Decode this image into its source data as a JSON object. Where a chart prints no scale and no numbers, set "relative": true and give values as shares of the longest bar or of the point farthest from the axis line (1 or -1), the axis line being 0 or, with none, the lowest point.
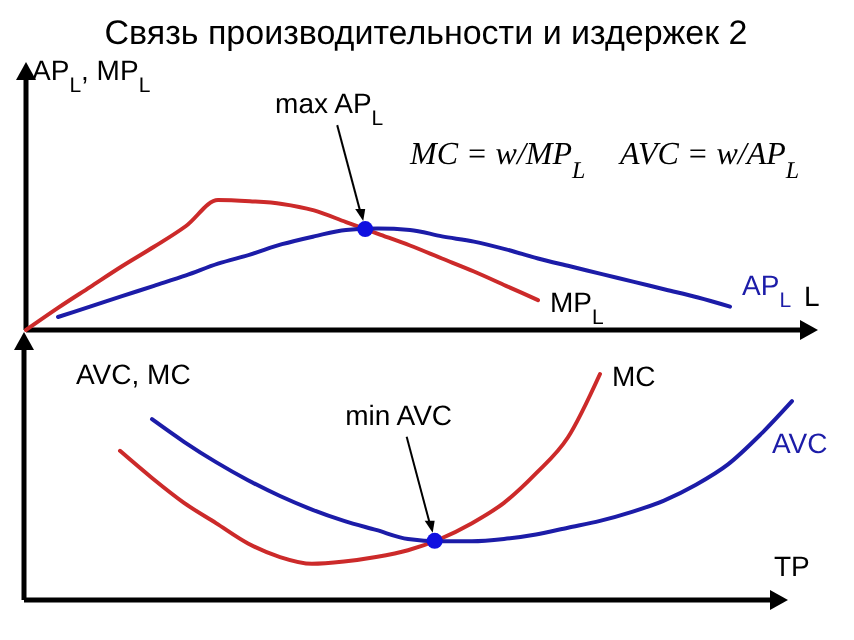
{
  "chart_data": [
    {
      "type": "line",
      "title": "Связь производительности и издержек 2",
      "xlabel": "L",
      "ylabel": "AP$_{L}$, MP$_{L}$",
      "relative": true,
      "categories": [
        null,
        null,
        null,
        null,
        null,
        null,
        null,
        null,
        null,
        null,
        null,
        null,
        null,
        null,
        null,
        null,
        null,
        null,
        null,
        null,
        null,
        null,
        null,
        null,
        null
      ],
      "series": [
        {
          "name": "MP$_{L}$",
          "color": "#cc2a2a",
          "values": [
            0,
            0.17,
            0.33,
            0.49,
            0.64,
            0.8,
            1.0,
            0.99,
            0.97,
            0.92,
            0.83,
            0.74,
            0.65,
            0.55,
            0.45,
            0.34,
            0.23,
            null,
            null,
            null,
            null,
            null,
            null,
            null,
            null
          ]
        },
        {
          "name": "AP$_{L}$",
          "color": "#1c1ca8",
          "values": [
            null,
            0.1,
            0.18,
            0.26,
            0.34,
            0.42,
            0.51,
            0.58,
            0.66,
            0.72,
            0.77,
            0.78,
            0.77,
            0.72,
            0.68,
            0.62,
            0.55,
            0.49,
            0.43,
            0.37,
            0.31,
            0.25,
            0.18,
            null,
            null
          ]
        }
      ],
      "annotations": [
        "max AP$_{L}$",
        "MC = w/MP$_{L}$",
        "AVC = w/AP$_{L}$"
      ]
    },
    {
      "type": "line",
      "xlabel": "TP",
      "ylabel": "AVC, MC",
      "relative": true,
      "categories": [
        null,
        null,
        null,
        null,
        null,
        null,
        null,
        null,
        null,
        null,
        null,
        null,
        null,
        null,
        null,
        null,
        null,
        null,
        null,
        null,
        null,
        null,
        null,
        null,
        null
      ],
      "series": [
        {
          "name": "MC",
          "color": "#cc2a2a",
          "values": [
            null,
            null,
            null,
            0.66,
            0.54,
            0.43,
            0.34,
            0.25,
            0.19,
            0.16,
            0.17,
            0.19,
            0.22,
            0.27,
            0.34,
            0.43,
            0.56,
            0.72,
            1.0,
            null,
            null,
            null,
            null,
            null,
            null
          ]
        },
        {
          "name": "AVC",
          "color": "#1c1ca8",
          "values": [
            null,
            null,
            null,
            null,
            0.8,
            0.7,
            0.61,
            0.53,
            0.46,
            0.4,
            0.35,
            0.31,
            0.27,
            0.26,
            0.26,
            0.27,
            0.29,
            0.32,
            0.35,
            0.39,
            0.44,
            0.51,
            0.6,
            0.73,
            0.88
          ]
        }
      ],
      "annotations": [
        "min AVC"
      ]
    }
  ]
}
